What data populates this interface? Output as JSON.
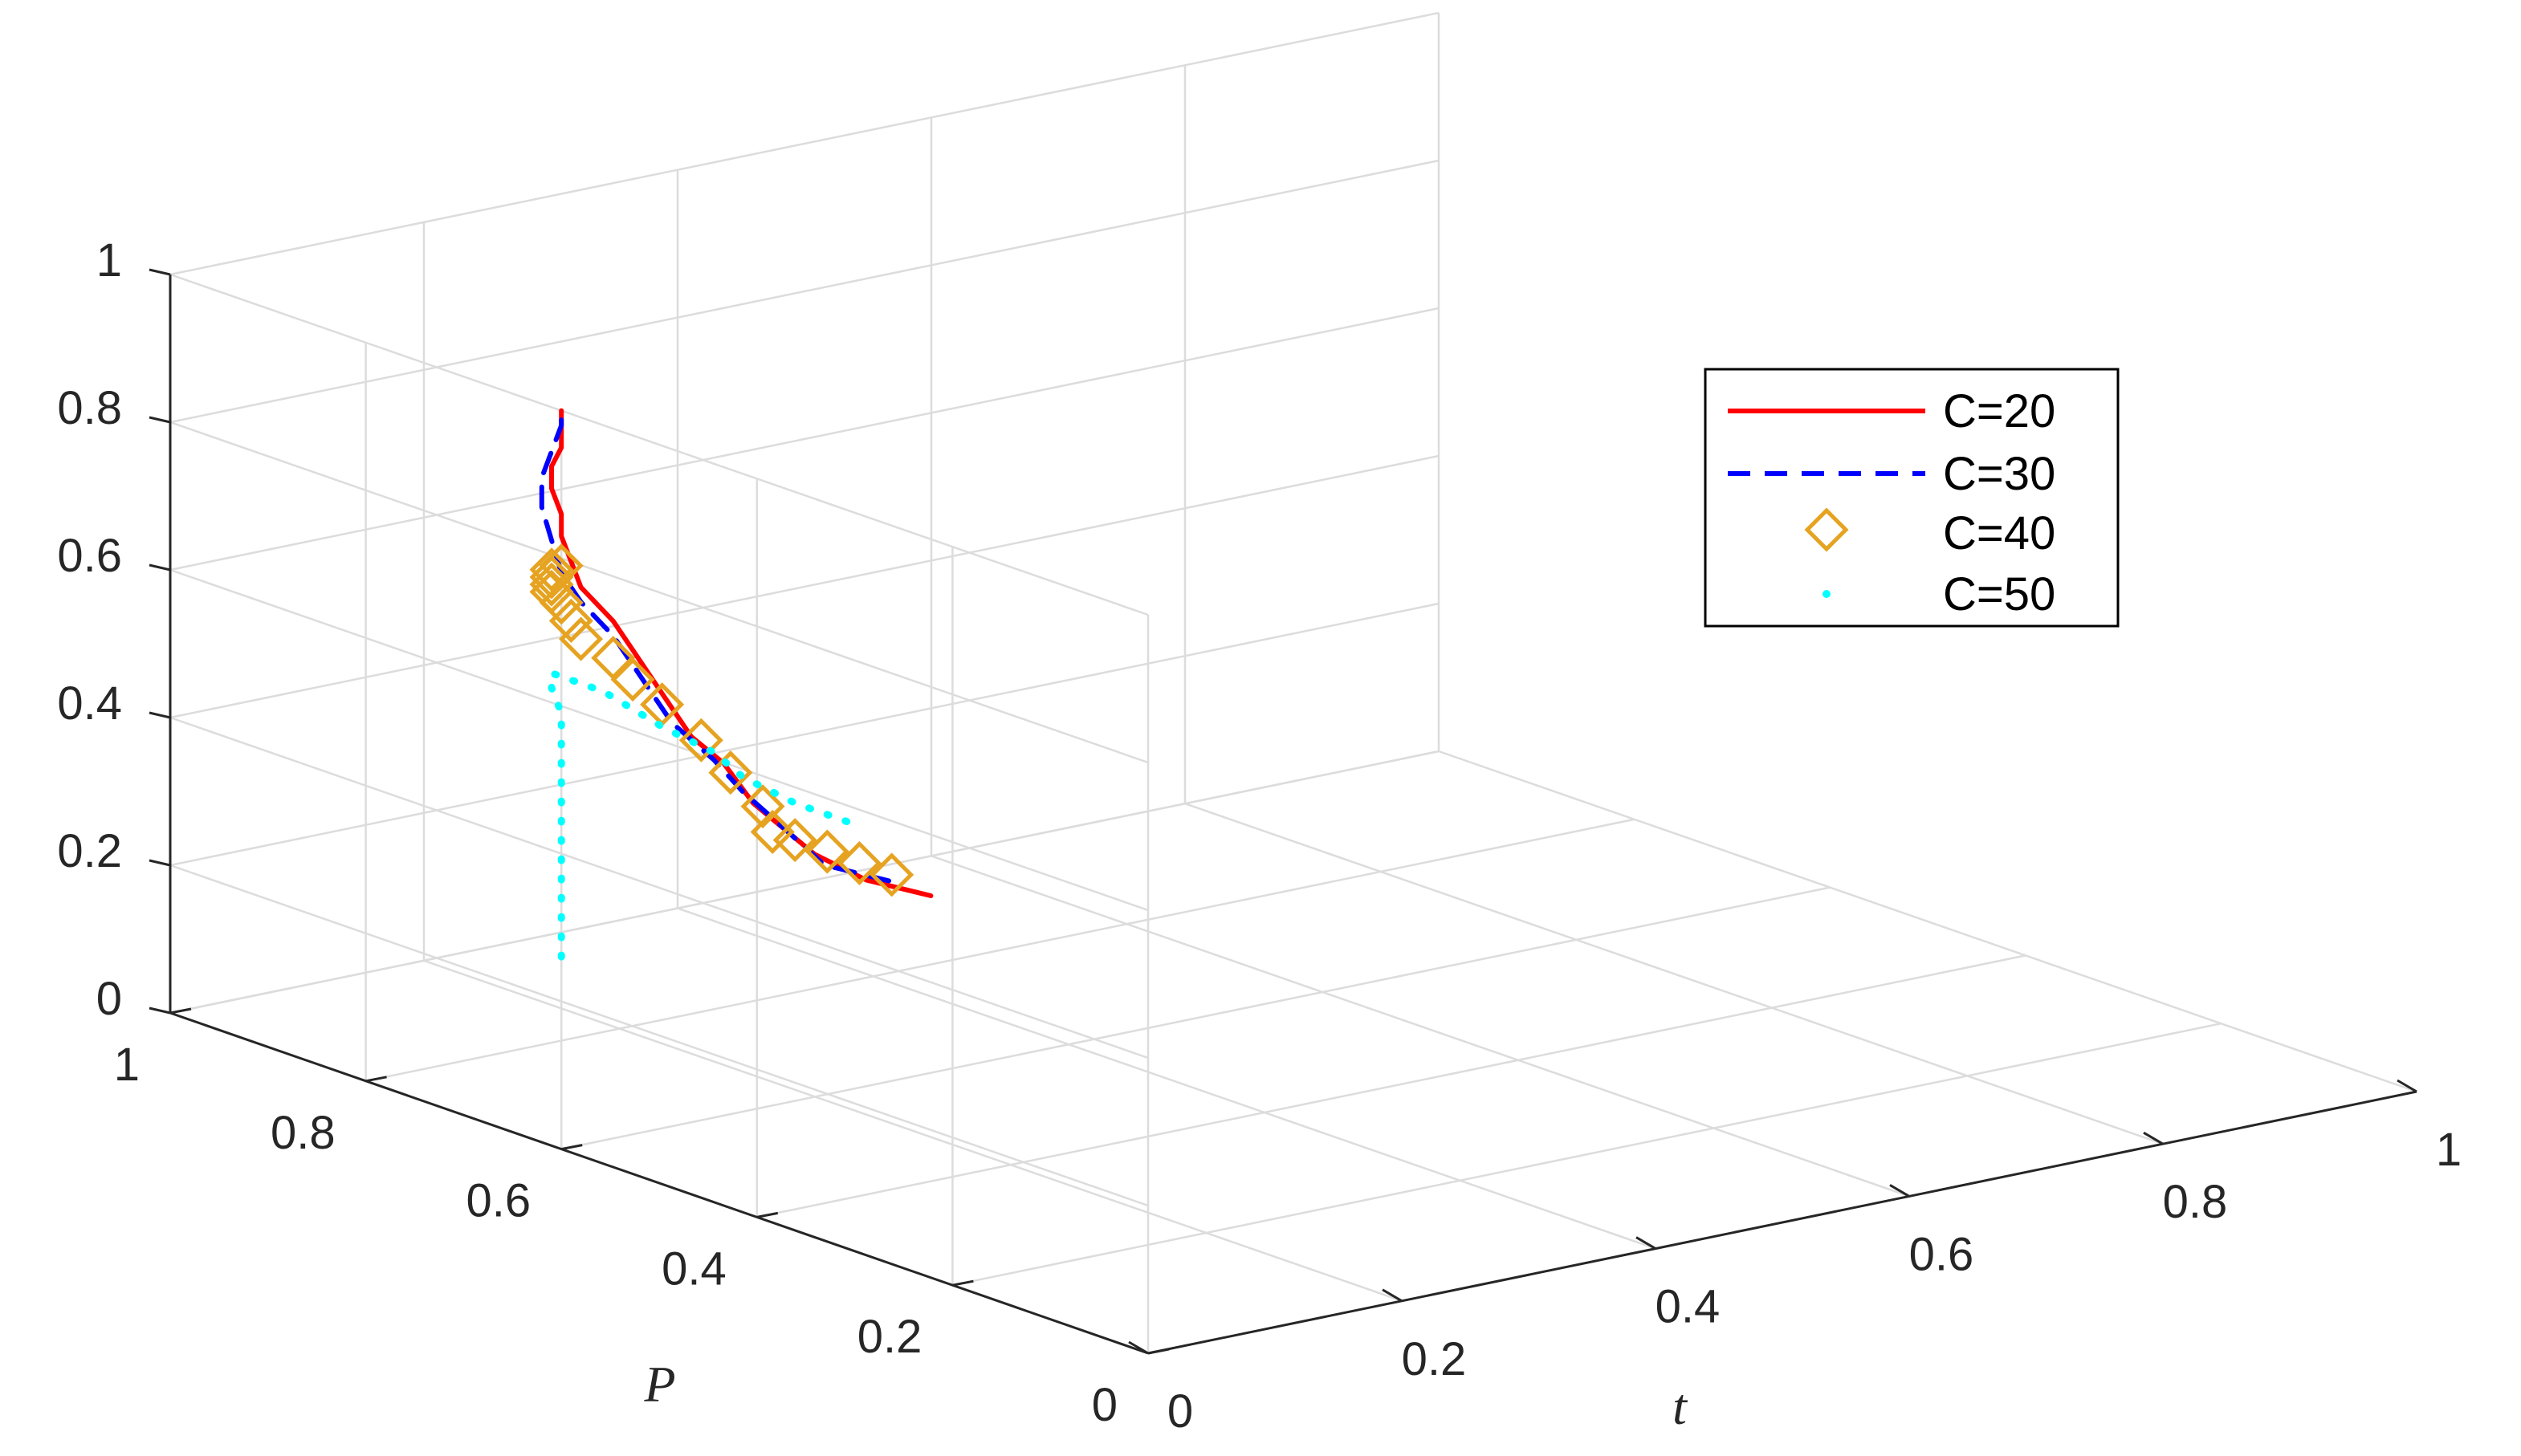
{
  "chart_data": {
    "type": "line3d",
    "title": "",
    "xlabel": "t",
    "ylabel": "P",
    "zlabel": "",
    "xlim": [
      0,
      1
    ],
    "ylim": [
      0,
      1
    ],
    "zlim": [
      0,
      1
    ],
    "x_ticks": [
      "0",
      "0.2",
      "0.4",
      "0.6",
      "0.8",
      "1"
    ],
    "y_ticks": [
      "0",
      "0.2",
      "0.4",
      "0.6",
      "0.8",
      "1"
    ],
    "z_ticks": [
      "0",
      "0.2",
      "0.4",
      "0.6",
      "0.8",
      "1"
    ],
    "grid": true,
    "legend_position": "right",
    "series": [
      {
        "name": "C=20",
        "color": "#ff0000",
        "style": "solid",
        "points": [
          [
            0.06,
            0.3,
            0.46
          ],
          [
            0.04,
            0.34,
            0.47
          ],
          [
            0.03,
            0.38,
            0.49
          ],
          [
            0.02,
            0.43,
            0.54
          ],
          [
            0.02,
            0.46,
            0.58
          ],
          [
            0.01,
            0.48,
            0.61
          ],
          [
            0.01,
            0.5,
            0.64
          ],
          [
            0.01,
            0.52,
            0.67
          ],
          [
            0.01,
            0.54,
            0.7
          ],
          [
            0.01,
            0.56,
            0.73
          ],
          [
            0.0,
            0.58,
            0.77
          ],
          [
            0.0,
            0.59,
            0.8
          ],
          [
            0.0,
            0.6,
            0.83
          ],
          [
            0.0,
            0.6,
            0.86
          ],
          [
            0.0,
            0.61,
            0.89
          ],
          [
            0.0,
            0.61,
            0.92
          ],
          [
            0.0,
            0.6,
            0.95
          ],
          [
            0.0,
            0.6,
            0.98
          ],
          [
            0.0,
            0.6,
            1.0
          ]
        ]
      },
      {
        "name": "C=30",
        "color": "#0000ff",
        "style": "dashed",
        "points": [
          [
            0.05,
            0.33,
            0.47
          ],
          [
            0.03,
            0.37,
            0.48
          ],
          [
            0.03,
            0.41,
            0.51
          ],
          [
            0.02,
            0.44,
            0.55
          ],
          [
            0.02,
            0.47,
            0.58
          ],
          [
            0.01,
            0.5,
            0.62
          ],
          [
            0.01,
            0.52,
            0.65
          ],
          [
            0.01,
            0.54,
            0.68
          ],
          [
            0.01,
            0.56,
            0.71
          ],
          [
            0.0,
            0.58,
            0.75
          ],
          [
            0.0,
            0.6,
            0.78
          ],
          [
            0.0,
            0.61,
            0.82
          ],
          [
            0.0,
            0.62,
            0.86
          ],
          [
            0.0,
            0.62,
            0.9
          ],
          [
            0.0,
            0.61,
            0.94
          ],
          [
            0.0,
            0.6,
            0.98
          ],
          [
            0.0,
            0.6,
            1.0
          ]
        ]
      },
      {
        "name": "C=40",
        "color": "#e6a321",
        "style": "marker-diamond",
        "points": [
          [
            0.06,
            0.34,
            0.47
          ],
          [
            0.05,
            0.36,
            0.48
          ],
          [
            0.04,
            0.38,
            0.49
          ],
          [
            0.03,
            0.4,
            0.5
          ],
          [
            0.02,
            0.41,
            0.51
          ],
          [
            0.02,
            0.42,
            0.54
          ],
          [
            0.01,
            0.44,
            0.58
          ],
          [
            0.01,
            0.47,
            0.61
          ],
          [
            0.01,
            0.51,
            0.64
          ],
          [
            0.01,
            0.54,
            0.66
          ],
          [
            0.01,
            0.56,
            0.68
          ],
          [
            0.0,
            0.58,
            0.7
          ],
          [
            0.0,
            0.59,
            0.72
          ],
          [
            0.0,
            0.6,
            0.74
          ],
          [
            0.0,
            0.61,
            0.75
          ],
          [
            0.0,
            0.61,
            0.76
          ],
          [
            0.0,
            0.61,
            0.77
          ],
          [
            0.0,
            0.61,
            0.78
          ],
          [
            0.0,
            0.6,
            0.79
          ]
        ]
      },
      {
        "name": "C=50",
        "color": "#00ffff",
        "style": "dotted",
        "points": [
          [
            0.04,
            0.36,
            0.54
          ],
          [
            0.03,
            0.4,
            0.55
          ],
          [
            0.02,
            0.44,
            0.57
          ],
          [
            0.02,
            0.47,
            0.59
          ],
          [
            0.01,
            0.51,
            0.61
          ],
          [
            0.01,
            0.54,
            0.62
          ],
          [
            0.01,
            0.57,
            0.63
          ],
          [
            0.0,
            0.6,
            0.64
          ],
          [
            0.0,
            0.61,
            0.64
          ],
          [
            0.0,
            0.61,
            0.62
          ],
          [
            0.0,
            0.6,
            0.59
          ],
          [
            0.0,
            0.6,
            0.55
          ],
          [
            0.0,
            0.6,
            0.5
          ],
          [
            0.0,
            0.6,
            0.45
          ],
          [
            0.0,
            0.6,
            0.4
          ],
          [
            0.0,
            0.6,
            0.35
          ],
          [
            0.0,
            0.6,
            0.3
          ],
          [
            0.0,
            0.6,
            0.26
          ]
        ]
      }
    ]
  }
}
